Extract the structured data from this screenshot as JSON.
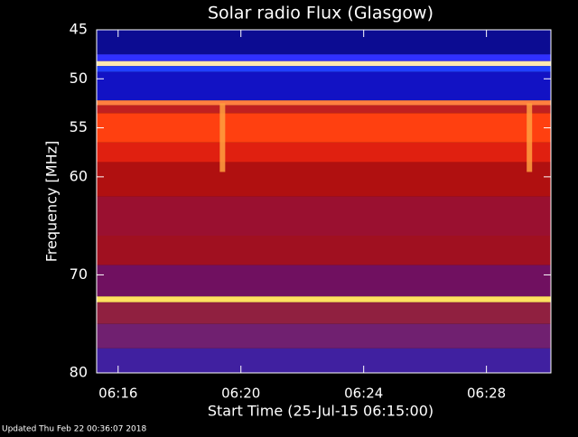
{
  "chart_data": {
    "type": "spectrogram",
    "title": "Solar radio Flux (Glasgow)",
    "xlabel": "Start Time (25-Jul-15 06:15:00)",
    "ylabel": "Frequency [MHz]",
    "note": "Updated Thu Feb 22 00:36:07 2018",
    "xlim": [
      15.3,
      30.1
    ],
    "xticks": [
      {
        "value": 16,
        "label": "06:16"
      },
      {
        "value": 20,
        "label": "06:20"
      },
      {
        "value": 24,
        "label": "06:24"
      },
      {
        "value": 28,
        "label": "06:28"
      }
    ],
    "ylim": [
      45,
      80
    ],
    "yticks": [
      45,
      50,
      55,
      60,
      70,
      80
    ],
    "y_inverted": true,
    "background": "#000000",
    "bands": [
      {
        "range": [
          45,
          47.5
        ],
        "color": "#0c0c92"
      },
      {
        "range": [
          47.5,
          48.2
        ],
        "color": "#3030ff"
      },
      {
        "range": [
          48.2,
          48.7
        ],
        "color": "#ffe8b0"
      },
      {
        "range": [
          48.7,
          49.3
        ],
        "color": "#2040ff"
      },
      {
        "range": [
          49.3,
          52.2
        ],
        "color": "#1212c4"
      },
      {
        "range": [
          52.2,
          52.7
        ],
        "color": "#ff8040"
      },
      {
        "range": [
          52.7,
          53.5
        ],
        "color": "#c02020"
      },
      {
        "range": [
          53.5,
          56.5
        ],
        "color": "#ff4010"
      },
      {
        "range": [
          56.5,
          58.5
        ],
        "color": "#e02010"
      },
      {
        "range": [
          58.5,
          62
        ],
        "color": "#b01010"
      },
      {
        "range": [
          62,
          66
        ],
        "color": "#9a1030"
      },
      {
        "range": [
          66,
          69
        ],
        "color": "#a01020"
      },
      {
        "range": [
          69,
          72.2
        ],
        "color": "#701060"
      },
      {
        "range": [
          72.2,
          72.8
        ],
        "color": "#ffe060"
      },
      {
        "range": [
          72.8,
          75
        ],
        "color": "#902040"
      },
      {
        "range": [
          75,
          77.5
        ],
        "color": "#702070"
      },
      {
        "range": [
          77.5,
          80
        ],
        "color": "#4020a0"
      }
    ],
    "bursts": [
      {
        "time": 19.4,
        "range": [
          52.5,
          59.5
        ],
        "color": "#ffa040"
      },
      {
        "time": 29.4,
        "range": [
          52.5,
          59.5
        ],
        "color": "#ffa040"
      }
    ]
  }
}
